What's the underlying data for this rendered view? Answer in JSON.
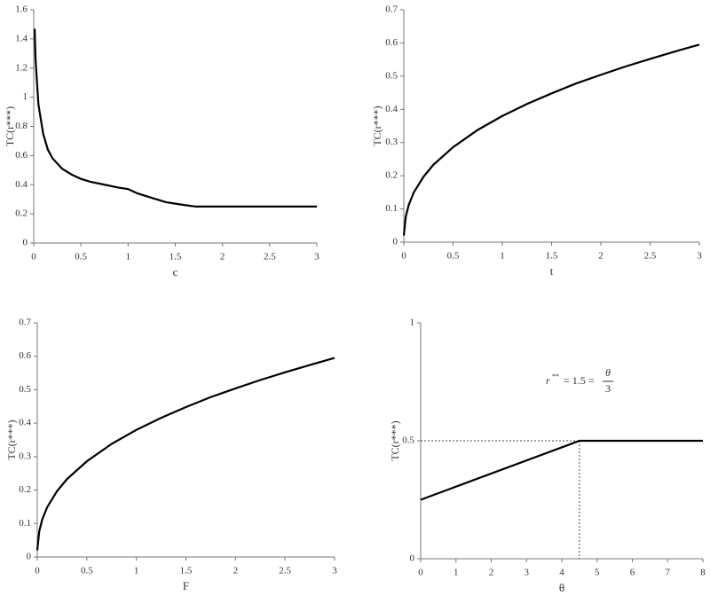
{
  "chart_data": [
    {
      "type": "line",
      "x_label": "c",
      "y_label": "TC(r***)",
      "color": "#000000",
      "x": [
        0.01,
        0.02,
        0.05,
        0.1,
        0.15,
        0.2,
        0.3,
        0.4,
        0.5,
        0.6,
        0.75,
        0.9,
        1.0,
        1.1,
        1.25,
        1.4,
        1.5,
        1.6,
        1.72,
        2,
        2.5,
        3
      ],
      "values": [
        1.47,
        1.25,
        0.95,
        0.75,
        0.64,
        0.58,
        0.51,
        0.47,
        0.44,
        0.42,
        0.4,
        0.38,
        0.37,
        0.34,
        0.31,
        0.28,
        0.27,
        0.26,
        0.25,
        0.25,
        0.25,
        0.25
      ],
      "xlim": [
        0,
        3
      ],
      "ylim": [
        0,
        1.6
      ],
      "xticks": [
        0,
        0.5,
        1,
        1.5,
        2,
        2.5,
        3
      ],
      "yticks": [
        0,
        0.2,
        0.4,
        0.6,
        0.8,
        1,
        1.2,
        1.4,
        1.6
      ]
    },
    {
      "type": "line",
      "x_label": "t",
      "y_label": "TC(r***)",
      "color": "#000000",
      "x": [
        0,
        0.02,
        0.05,
        0.1,
        0.2,
        0.3,
        0.5,
        0.75,
        1,
        1.25,
        1.5,
        1.75,
        2,
        2.25,
        2.5,
        2.75,
        3
      ],
      "values": [
        0.02,
        0.077,
        0.112,
        0.149,
        0.197,
        0.233,
        0.286,
        0.338,
        0.38,
        0.416,
        0.448,
        0.478,
        0.504,
        0.529,
        0.552,
        0.574,
        0.595
      ],
      "xlim": [
        0,
        3
      ],
      "ylim": [
        0,
        0.7
      ],
      "xticks": [
        0,
        0.5,
        1,
        1.5,
        2,
        2.5,
        3
      ],
      "yticks": [
        0,
        0.1,
        0.2,
        0.3,
        0.4,
        0.5,
        0.6,
        0.7
      ]
    },
    {
      "type": "line",
      "x_label": "F",
      "y_label": "TC(r***)",
      "color": "#000000",
      "x": [
        0,
        0.02,
        0.05,
        0.1,
        0.2,
        0.3,
        0.5,
        0.75,
        1,
        1.25,
        1.5,
        1.75,
        2,
        2.25,
        2.5,
        2.75,
        3
      ],
      "values": [
        0.02,
        0.077,
        0.112,
        0.149,
        0.197,
        0.233,
        0.286,
        0.338,
        0.38,
        0.416,
        0.448,
        0.478,
        0.504,
        0.529,
        0.552,
        0.574,
        0.595
      ],
      "xlim": [
        0,
        3
      ],
      "ylim": [
        0,
        0.7
      ],
      "xticks": [
        0,
        0.5,
        1,
        1.5,
        2,
        2.5,
        3
      ],
      "yticks": [
        0,
        0.1,
        0.2,
        0.3,
        0.4,
        0.5,
        0.6,
        0.7
      ]
    },
    {
      "type": "line",
      "x_label": "θ",
      "y_label": "TC(r***)",
      "color": "#000000",
      "x": [
        0,
        4.5,
        8
      ],
      "values": [
        0.25,
        0.5,
        0.5
      ],
      "xlim": [
        0,
        8
      ],
      "ylim": [
        0,
        1
      ],
      "xticks": [
        0,
        1,
        2,
        3,
        4,
        5,
        6,
        7,
        8
      ],
      "yticks": [
        0,
        0.5,
        1
      ],
      "reference": {
        "x": 4.5,
        "y": 0.5
      },
      "annotation": {
        "lhs": "r",
        "sup": "**",
        "mid": "= 1.5 =",
        "num": "θ",
        "den": "3"
      }
    }
  ]
}
